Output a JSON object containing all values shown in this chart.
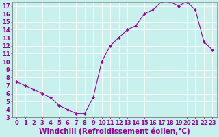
{
  "x": [
    0,
    1,
    2,
    3,
    4,
    5,
    6,
    7,
    8,
    9,
    10,
    11,
    12,
    13,
    14,
    15,
    16,
    17,
    18,
    19,
    20,
    21,
    22,
    23
  ],
  "y": [
    7.5,
    7.0,
    6.5,
    6.0,
    5.5,
    4.5,
    4.0,
    3.5,
    3.5,
    5.5,
    10.0,
    12.0,
    13.0,
    14.0,
    14.5,
    16.0,
    16.5,
    17.5,
    17.5,
    17.0,
    17.5,
    16.5,
    12.5,
    11.5
  ],
  "line_color": "#990099",
  "marker": "D",
  "marker_size": 2,
  "background_color": "#c8f0ec",
  "grid_color": "#ffffff",
  "xlabel": "Windchill (Refroidissement éolien,°C)",
  "xlabel_fontsize": 7.5,
  "xlabel_color": "#990099",
  "ylim": [
    3,
    17.5
  ],
  "xlim": [
    -0.5,
    23.5
  ],
  "yticks": [
    3,
    4,
    5,
    6,
    7,
    8,
    9,
    10,
    11,
    12,
    13,
    14,
    15,
    16,
    17
  ],
  "xticks": [
    0,
    1,
    2,
    3,
    4,
    5,
    6,
    7,
    8,
    9,
    10,
    11,
    12,
    13,
    14,
    15,
    16,
    17,
    18,
    19,
    20,
    21,
    22,
    23
  ],
  "tick_fontsize": 6,
  "tick_color": "#990099"
}
